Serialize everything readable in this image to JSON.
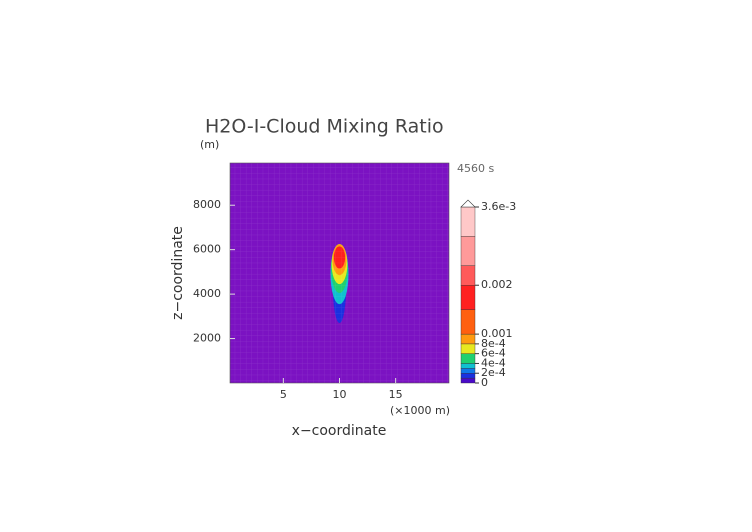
{
  "chart_data": {
    "type": "contour",
    "title": "H2O-I-Cloud Mixing Ratio",
    "y_unit": "(m)",
    "time_label": "4560 s",
    "x_unit": "(×1000 m)",
    "xlabel": "x−coordinate",
    "ylabel": "z−coordinate",
    "xlim": [
      0.25,
      19.75
    ],
    "ylim": [
      0,
      9900
    ],
    "xticks": [
      5,
      10,
      15
    ],
    "yticks": [
      2000,
      4000,
      6000,
      8000
    ],
    "background_color": "#7b12c2",
    "colorbar": {
      "levels": [
        0,
        0.0001,
        0.0002,
        0.0003,
        0.0004,
        0.0006,
        0.0008,
        0.001,
        0.0015,
        0.002,
        0.0024,
        0.003,
        0.0036
      ],
      "colors": [
        "#4a0ac8",
        "#1a30e0",
        "#1078e8",
        "#10c0d0",
        "#20d070",
        "#e8e820",
        "#ff9a10",
        "#ff6010",
        "#ff2020",
        "#ff5a5a",
        "#ff9a9a",
        "#ffc8c8"
      ],
      "ticks": [
        0,
        {
          "value": 0.0002,
          "label": "2e-4"
        },
        {
          "value": 0.0004,
          "label": "4e-4"
        },
        {
          "value": 0.0006,
          "label": "6e-4"
        },
        {
          "value": 0.0008,
          "label": "8e-4"
        },
        0.001,
        0.002,
        {
          "value": 0.0036,
          "label": "3.6e-3"
        }
      ]
    },
    "regions": [
      {
        "x": 10,
        "z": 4400,
        "rx": 0.6,
        "rz": 1700,
        "band": 1
      },
      {
        "x": 10,
        "z": 4900,
        "rx": 0.8,
        "rz": 1350,
        "band": 3
      },
      {
        "x": 10,
        "z": 5150,
        "rx": 0.75,
        "rz": 1100,
        "band": 4
      },
      {
        "x": 10,
        "z": 5350,
        "rx": 0.7,
        "rz": 900,
        "band": 5
      },
      {
        "x": 10,
        "z": 5550,
        "rx": 0.62,
        "rz": 700,
        "band": 6
      },
      {
        "x": 10,
        "z": 5650,
        "rx": 0.5,
        "rz": 500,
        "band": 8
      }
    ]
  }
}
